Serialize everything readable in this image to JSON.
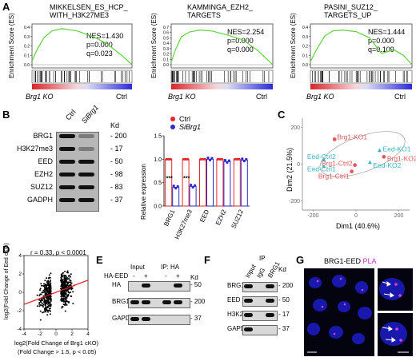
{
  "panels": {
    "A": "A",
    "B": "B",
    "C": "C",
    "D": "D",
    "E": "E",
    "F": "F",
    "G": "G"
  },
  "gsea": [
    {
      "title1": "MIKKELSEN_ES_HCP_",
      "title2": "WITH_H3K27ME3",
      "nes": "NES=1.430",
      "p": "p=0.000",
      "q": "q=0.023",
      "ticks": [
        "0.4",
        "0.3",
        "0.2",
        "0.1",
        "0.0"
      ],
      "left": "Brg1 KO",
      "right": "Ctrl",
      "ylabel": "Enrichment Score (ES)"
    },
    {
      "title1": "KAMMINGA_EZH2_",
      "title2": "TARGETS",
      "nes": "NES=2.254",
      "p": "p=0.000",
      "q": "q=0.000",
      "ticks": [
        "0.7",
        "0.6",
        "0.5",
        "0.4",
        "0.3",
        "0.2",
        "0.1",
        "0.0"
      ],
      "left": "Brg1 KO",
      "right": "Ctrl",
      "ylabel": "Enrichment Score (ES)"
    },
    {
      "title1": "PASINI_SUZ12_",
      "title2": "TARGETS_UP",
      "nes": "NES=1.444",
      "p": "p=0.000",
      "q": "q=0.109",
      "ticks": [
        "0.4",
        "0.3",
        "0.2",
        "0.1",
        "0.0"
      ],
      "left": "Brg1 KO",
      "right": "Ctrl",
      "ylabel": "Enrichment Score (ES)"
    }
  ],
  "panelB": {
    "lanes": [
      "Ctrl",
      "SiBrg1"
    ],
    "kd": "Kd",
    "rows": [
      {
        "label": "BRG1",
        "kd": "200"
      },
      {
        "label": "H3K27me3",
        "kd": "17"
      },
      {
        "label": "EED",
        "kd": "50"
      },
      {
        "label": "EZH2",
        "kd": "98"
      },
      {
        "label": "SUZ12",
        "kd": "83"
      },
      {
        "label": "GADPH",
        "kd": "37"
      }
    ],
    "legend": [
      "Ctrl",
      "SiBrg1"
    ]
  },
  "chart_data": [
    {
      "type": "bar",
      "ylabel": "Relative expression",
      "categories": [
        "BRG1",
        "H3K27me3",
        "EED",
        "EZH2",
        "SUZ12"
      ],
      "series": [
        {
          "name": "Ctrl",
          "values": [
            1.0,
            1.0,
            1.0,
            1.0,
            1.0
          ]
        },
        {
          "name": "SiBrg1",
          "values": [
            0.4,
            0.42,
            1.0,
            0.95,
            0.98
          ]
        }
      ],
      "ylim": [
        0,
        1.5
      ],
      "yticks": [
        "0.0",
        "0.5",
        "1.0",
        "1.5"
      ],
      "annotations": [
        "***",
        "***"
      ],
      "colors": {
        "Ctrl": "#e8262a",
        "SiBrg1": "#2b2bd1"
      }
    },
    {
      "type": "scatter",
      "xlabel": "Dim1 (40.6%)",
      "ylabel": "Dim2 (21.5%)",
      "xticks": [
        "-200",
        "0",
        "200"
      ],
      "yticks": [
        "200",
        "0",
        "-200"
      ],
      "points": [
        {
          "label": "Brg1-KO1",
          "x": -100,
          "y": 135,
          "group": "brg1"
        },
        {
          "label": "Brg1-KO2",
          "x": 130,
          "y": 40,
          "group": "brg1"
        },
        {
          "label": "Brg1-Ctrl2",
          "x": -5,
          "y": -5,
          "group": "brg1"
        },
        {
          "label": "Brg1-Ctrl1",
          "x": -20,
          "y": -40,
          "group": "brg1"
        },
        {
          "label": "Eed-KO1",
          "x": 110,
          "y": 75,
          "group": "eed"
        },
        {
          "label": "Eed-KO2",
          "x": 65,
          "y": 10,
          "group": "eed"
        },
        {
          "label": "Eed-Ctrl2",
          "x": -150,
          "y": 25,
          "group": "eed"
        },
        {
          "label": "Eed-Ctrl1",
          "x": -150,
          "y": -12,
          "group": "eed"
        }
      ],
      "colors": {
        "brg1": "#e25a5a",
        "eed": "#3bb5c4"
      }
    },
    {
      "type": "scatter",
      "xlabel": "log2(Fold Change of Brg1 cKO)",
      "xlabel2": "(Fold Change > 1.5, p < 0.05)",
      "ylabel": "log2(Fold Change of Eed cKO)",
      "xticks": [
        "-4",
        "-2",
        "0",
        "2",
        "4"
      ],
      "yticks": [
        "4",
        "2",
        "0",
        "-2",
        "-4"
      ],
      "xlim": [
        -4,
        4
      ],
      "ylim": [
        -4,
        4
      ],
      "stat": "r = 0.33, p < 0.0001",
      "fit": {
        "slope": 0.33,
        "intercept": 0.0
      }
    }
  ],
  "panelE": {
    "input": "Input",
    "ip": "IP: HA",
    "row0": "HA-EED",
    "signs": [
      "-",
      "+",
      "-",
      "+"
    ],
    "kd": "Kd",
    "rows": [
      {
        "label": "HA",
        "kd": "50"
      },
      {
        "label": "BRG1",
        "kd": "200"
      },
      {
        "label": "GAPDH",
        "kd": "37"
      }
    ]
  },
  "panelF": {
    "ip": "IP",
    "lanes": [
      "Input",
      "IgG",
      "BRG1"
    ],
    "kd": "Kd",
    "rows": [
      {
        "label": "BRG1",
        "kd": "200"
      },
      {
        "label": "EED",
        "kd": "50"
      },
      {
        "label": "H3K27me3",
        "kd": "17"
      },
      {
        "label": "GAPDH",
        "kd": "37"
      }
    ]
  },
  "panelG": {
    "title": "BRG1-EED ",
    "title2": "PLA"
  }
}
